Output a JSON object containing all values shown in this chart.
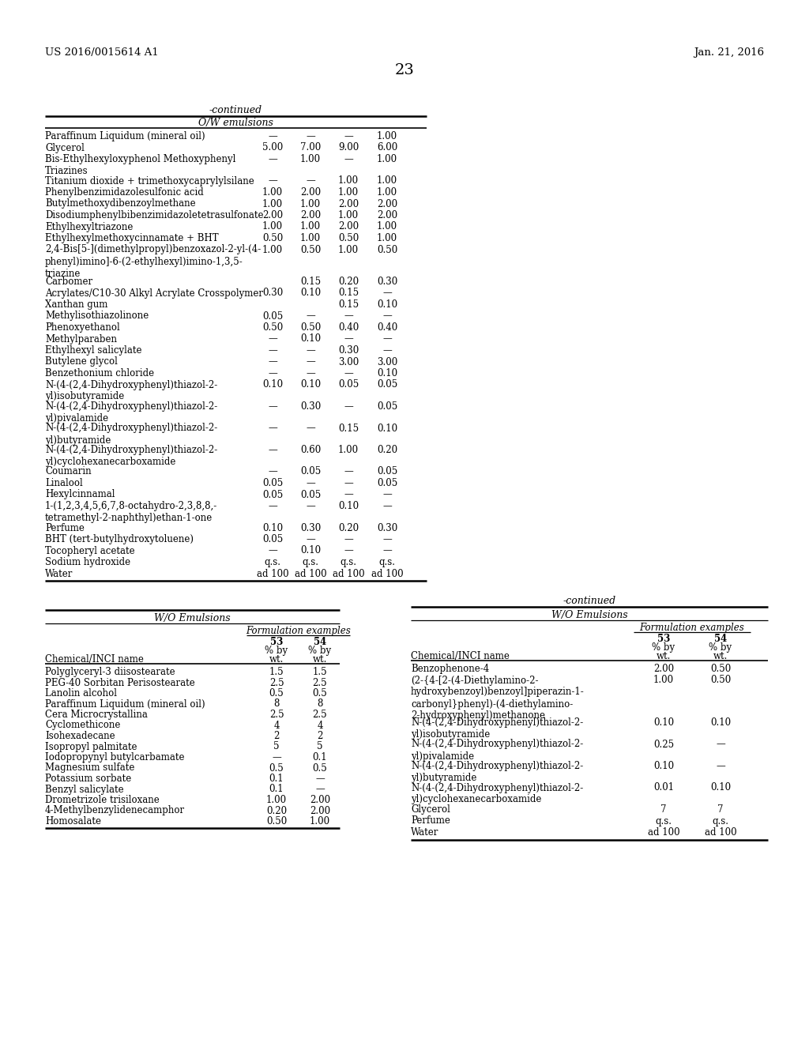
{
  "header_left": "US 2016/0015614 A1",
  "header_right": "Jan. 21, 2016",
  "page_number": "23",
  "top_table": {
    "section_header": "O/W emulsions",
    "rows": [
      {
        "name": "Paraffinum Liquidum (mineral oil)",
        "vals": [
          "—",
          "—",
          "—",
          "1.00"
        ],
        "nlines": 1
      },
      {
        "name": "Glycerol",
        "vals": [
          "5.00",
          "7.00",
          "9.00",
          "6.00"
        ],
        "nlines": 1
      },
      {
        "name": "Bis-Ethylhexyloxyphenol Methoxyphenyl\nTriazines",
        "vals": [
          "—",
          "1.00",
          "—",
          "1.00"
        ],
        "nlines": 2
      },
      {
        "name": "Titanium dioxide + trimethoxycaprylylsilane",
        "vals": [
          "—",
          "—",
          "1.00",
          "1.00"
        ],
        "nlines": 1
      },
      {
        "name": "Phenylbenzimidazolesulfonic acid",
        "vals": [
          "1.00",
          "2.00",
          "1.00",
          "1.00"
        ],
        "nlines": 1
      },
      {
        "name": "Butylmethoxydibenzoylmethane",
        "vals": [
          "1.00",
          "1.00",
          "2.00",
          "2.00"
        ],
        "nlines": 1
      },
      {
        "name": "Disodiumphenylbibenzimidazoletetrasulfonate",
        "vals": [
          "2.00",
          "2.00",
          "1.00",
          "2.00"
        ],
        "nlines": 1
      },
      {
        "name": "Ethylhexyltriazone",
        "vals": [
          "1.00",
          "1.00",
          "2.00",
          "1.00"
        ],
        "nlines": 1
      },
      {
        "name": "Ethylhexylmethoxycinnamate + BHT",
        "vals": [
          "0.50",
          "1.00",
          "0.50",
          "1.00"
        ],
        "nlines": 1
      },
      {
        "name": "2,4-Bis[5-](dimethylpropyl)benzoxazol-2-yl-(4-\nphenyl)imino]-6-(2-ethylhexyl)imino-1,3,5-\ntriazine",
        "vals": [
          "1.00",
          "0.50",
          "1.00",
          "0.50"
        ],
        "nlines": 3
      },
      {
        "name": "Carbomer",
        "vals": [
          "",
          "0.15",
          "0.20",
          "0.30"
        ],
        "nlines": 1
      },
      {
        "name": "Acrylates/C10-30 Alkyl Acrylate Crosspolymer",
        "vals": [
          "0.30",
          "0.10",
          "0.15",
          "—"
        ],
        "nlines": 1
      },
      {
        "name": "Xanthan gum",
        "vals": [
          "",
          "",
          "0.15",
          "0.10"
        ],
        "nlines": 1
      },
      {
        "name": "Methylisothiazolinone",
        "vals": [
          "0.05",
          "—",
          "—",
          "—"
        ],
        "nlines": 1
      },
      {
        "name": "Phenoxyethanol",
        "vals": [
          "0.50",
          "0.50",
          "0.40",
          "0.40"
        ],
        "nlines": 1
      },
      {
        "name": "Methylparaben",
        "vals": [
          "—",
          "0.10",
          "—",
          "—"
        ],
        "nlines": 1
      },
      {
        "name": "Ethylhexyl salicylate",
        "vals": [
          "—",
          "—",
          "0.30",
          "—"
        ],
        "nlines": 1
      },
      {
        "name": "Butylene glycol",
        "vals": [
          "—",
          "—",
          "3.00",
          "3.00"
        ],
        "nlines": 1
      },
      {
        "name": "Benzethonium chloride",
        "vals": [
          "—",
          "—",
          "—",
          "0.10"
        ],
        "nlines": 1
      },
      {
        "name": "N-(4-(2,4-Dihydroxyphenyl)thiazol-2-\nyl)isobutyramide",
        "vals": [
          "0.10",
          "0.10",
          "0.05",
          "0.05"
        ],
        "nlines": 2
      },
      {
        "name": "N-(4-(2,4-Dihydroxyphenyl)thiazol-2-\nyl)pivalamide",
        "vals": [
          "—",
          "0.30",
          "—",
          "0.05"
        ],
        "nlines": 2
      },
      {
        "name": "N-(4-(2,4-Dihydroxyphenyl)thiazol-2-\nyl)butyramide",
        "vals": [
          "—",
          "—",
          "0.15",
          "0.10"
        ],
        "nlines": 2
      },
      {
        "name": "N-(4-(2,4-Dihydroxyphenyl)thiazol-2-\nyl)cyclohexanecarboxamide",
        "vals": [
          "—",
          "0.60",
          "1.00",
          "0.20"
        ],
        "nlines": 2
      },
      {
        "name": "Coumarin",
        "vals": [
          "—",
          "0.05",
          "—",
          "0.05"
        ],
        "nlines": 1
      },
      {
        "name": "Linalool",
        "vals": [
          "0.05",
          "—",
          "—",
          "0.05"
        ],
        "nlines": 1
      },
      {
        "name": "Hexylcinnamal",
        "vals": [
          "0.05",
          "0.05",
          "—",
          "—"
        ],
        "nlines": 1
      },
      {
        "name": "1-(1,2,3,4,5,6,7,8-octahydro-2,3,8,8,-\ntetramethyl-2-naphthyl)ethan-1-one",
        "vals": [
          "—",
          "—",
          "0.10",
          "—"
        ],
        "nlines": 2
      },
      {
        "name": "Perfume",
        "vals": [
          "0.10",
          "0.30",
          "0.20",
          "0.30"
        ],
        "nlines": 1
      },
      {
        "name": "BHT (tert-butylhydroxytoluene)",
        "vals": [
          "0.05",
          "—",
          "—",
          "—"
        ],
        "nlines": 1
      },
      {
        "name": "Tocopheryl acetate",
        "vals": [
          "—",
          "0.10",
          "—",
          "—"
        ],
        "nlines": 1
      },
      {
        "name": "Sodium hydroxide",
        "vals": [
          "q.s.",
          "q.s.",
          "q.s.",
          "q.s."
        ],
        "nlines": 1
      },
      {
        "name": "Water",
        "vals": [
          "ad 100",
          "ad 100",
          "ad 100",
          "ad 100"
        ],
        "nlines": 1
      }
    ]
  },
  "bottom_left_table": {
    "section_header": "W/O Emulsions",
    "sub_header": "Formulation examples",
    "col_header": "Chemical/INCI name",
    "rows": [
      {
        "name": "Polyglyceryl-3 diisostearate",
        "vals": [
          "1.5",
          "1.5"
        ]
      },
      {
        "name": "PEG-40 Sorbitan Perisostearate",
        "vals": [
          "2.5",
          "2.5"
        ]
      },
      {
        "name": "Lanolin alcohol",
        "vals": [
          "0.5",
          "0.5"
        ]
      },
      {
        "name": "Paraffinum Liquidum (mineral oil)",
        "vals": [
          "8",
          "8"
        ]
      },
      {
        "name": "Cera Microcrystallina",
        "vals": [
          "2.5",
          "2.5"
        ]
      },
      {
        "name": "Cyclomethicone",
        "vals": [
          "4",
          "4"
        ]
      },
      {
        "name": "Isohexadecane",
        "vals": [
          "2",
          "2"
        ]
      },
      {
        "name": "Isopropyl palmitate",
        "vals": [
          "5",
          "5"
        ]
      },
      {
        "name": "Iodopropynyl butylcarbamate",
        "vals": [
          "—",
          "0.1"
        ]
      },
      {
        "name": "Magnesium sulfate",
        "vals": [
          "0.5",
          "0.5"
        ]
      },
      {
        "name": "Potassium sorbate",
        "vals": [
          "0.1",
          "—"
        ]
      },
      {
        "name": "Benzyl salicylate",
        "vals": [
          "0.1",
          "—"
        ]
      },
      {
        "name": "Drometrizole trisiloxane",
        "vals": [
          "1.00",
          "2.00"
        ]
      },
      {
        "name": "4-Methylbenzylidenecamphor",
        "vals": [
          "0.20",
          "2.00"
        ]
      },
      {
        "name": "Homosalate",
        "vals": [
          "0.50",
          "1.00"
        ]
      }
    ]
  },
  "bottom_right_table": {
    "section_header": "W/O Emulsions",
    "sub_header": "Formulation examples",
    "col_header": "Chemical/INCI name",
    "rows": [
      {
        "name": "Benzophenone-4",
        "vals": [
          "2.00",
          "0.50"
        ],
        "nlines": 1
      },
      {
        "name": "(2-{4-[2-(4-Diethylamino-2-\nhydroxybenzoyl)benzoyl]piperazin-1-\ncarbonyl}phenyl)-(4-diethylamino-\n2-hydroxyphenyl)methanone",
        "vals": [
          "1.00",
          "0.50"
        ],
        "nlines": 4
      },
      {
        "name": "N-(4-(2,4-Dihydroxyphenyl)thiazol-2-\nyl)isobutyramide",
        "vals": [
          "0.10",
          "0.10"
        ],
        "nlines": 2
      },
      {
        "name": "N-(4-(2,4-Dihydroxyphenyl)thiazol-2-\nyl)pivalamide",
        "vals": [
          "0.25",
          "—"
        ],
        "nlines": 2
      },
      {
        "name": "N-(4-(2,4-Dihydroxyphenyl)thiazol-2-\nyl)butyramide",
        "vals": [
          "0.10",
          "—"
        ],
        "nlines": 2
      },
      {
        "name": "N-(4-(2,4-Dihydroxyphenyl)thiazol-2-\nyl)cyclohexanecarboxamide",
        "vals": [
          "0.01",
          "0.10"
        ],
        "nlines": 2
      },
      {
        "name": "Glycerol",
        "vals": [
          "7",
          "7"
        ],
        "nlines": 1
      },
      {
        "name": "Perfume",
        "vals": [
          "q.s.",
          "q.s."
        ],
        "nlines": 1
      },
      {
        "name": "Water",
        "vals": [
          "ad 100",
          "ad 100"
        ],
        "nlines": 1
      }
    ]
  }
}
